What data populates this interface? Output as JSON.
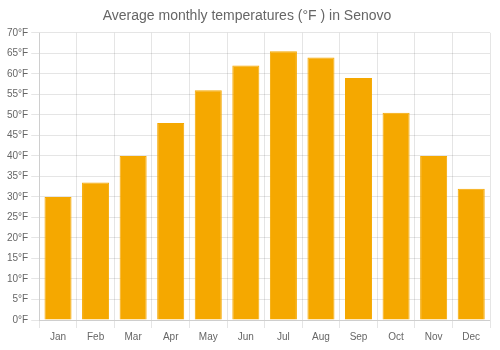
{
  "chart_data": {
    "type": "bar",
    "title": "Average monthly temperatures (°F ) in Senovo",
    "categories": [
      "Jan",
      "Feb",
      "Mar",
      "Apr",
      "May",
      "Jun",
      "Jul",
      "Aug",
      "Sep",
      "Oct",
      "Nov",
      "Dec"
    ],
    "values": [
      30,
      33.5,
      40,
      48,
      56,
      62,
      65.5,
      64,
      59,
      50.5,
      40,
      32
    ],
    "color": "#F5A800",
    "ylim": [
      0,
      70
    ],
    "yticks": [
      {
        "value": 0,
        "label": "0°F"
      },
      {
        "value": 5,
        "label": "5°F"
      },
      {
        "value": 10,
        "label": "10°F"
      },
      {
        "value": 15,
        "label": "15°F"
      },
      {
        "value": 20,
        "label": "20°F"
      },
      {
        "value": 25,
        "label": "25°F"
      },
      {
        "value": 30,
        "label": "30°F"
      },
      {
        "value": 35,
        "label": "35°F"
      },
      {
        "value": 40,
        "label": "40°F"
      },
      {
        "value": 45,
        "label": "45°F"
      },
      {
        "value": 50,
        "label": "50°F"
      },
      {
        "value": 55,
        "label": "55°F"
      },
      {
        "value": 60,
        "label": "60°F"
      },
      {
        "value": 65,
        "label": "65°F"
      },
      {
        "value": 70,
        "label": "70°F"
      }
    ],
    "grid": true
  }
}
